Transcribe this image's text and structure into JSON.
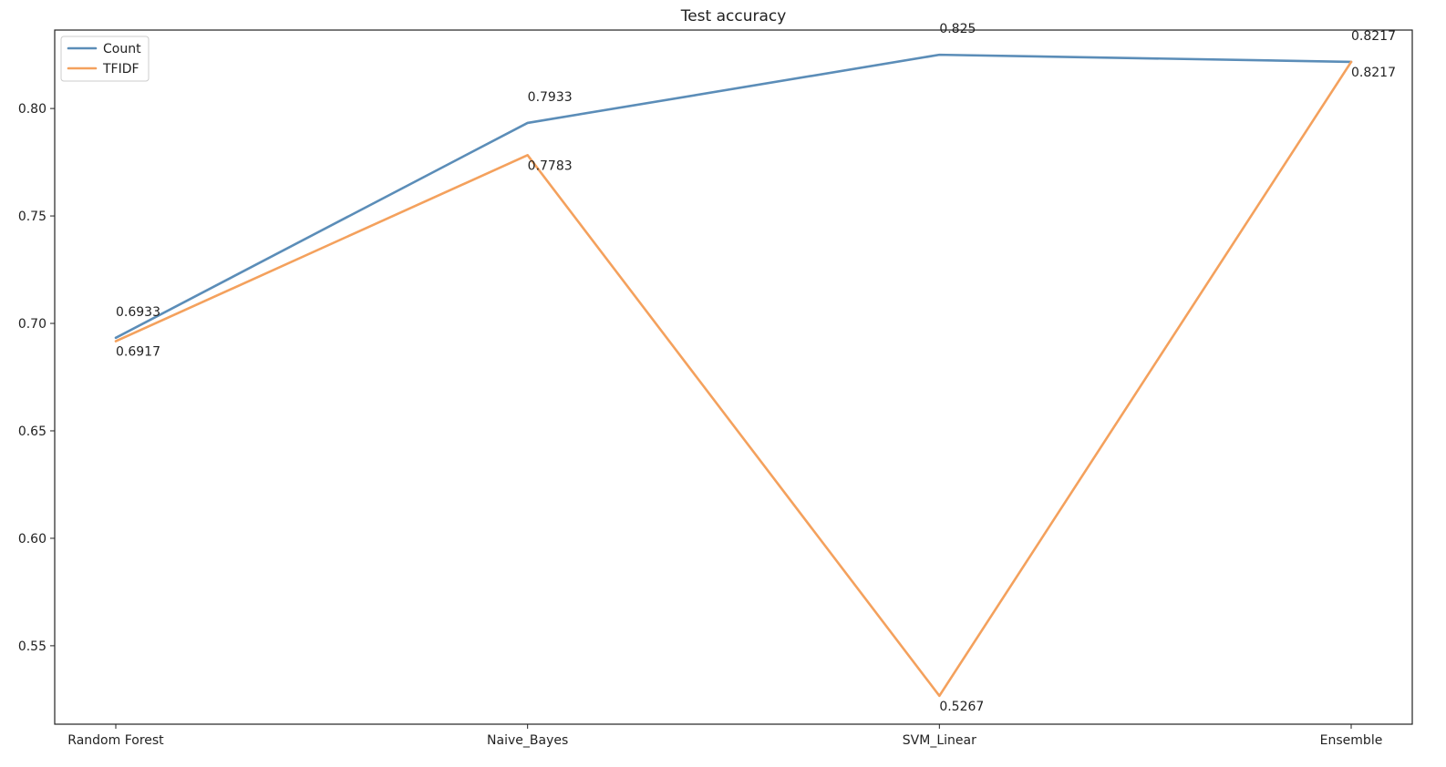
{
  "chart_data": {
    "type": "line",
    "title": "Test accuracy",
    "xlabel": "",
    "ylabel": "",
    "categories": [
      "Random Forest",
      "Naive_Bayes",
      "SVM_Linear",
      "Ensemble"
    ],
    "series": [
      {
        "name": "Count",
        "color": "#5b8db8",
        "values": [
          0.6933,
          0.7933,
          0.825,
          0.8217
        ],
        "labels": [
          "0.6933",
          "0.7933",
          "0.825",
          "0.8217"
        ]
      },
      {
        "name": "TFIDF",
        "color": "#f4a15d",
        "values": [
          0.6917,
          0.7783,
          0.5267,
          0.8217
        ],
        "labels": [
          "0.6917",
          "0.7783",
          "0.5267",
          "0.8217"
        ]
      }
    ],
    "ylim": [
      0.5135,
      0.8365
    ],
    "yticks": [
      0.55,
      0.6,
      0.65,
      0.7,
      0.75,
      0.8
    ],
    "ytick_labels": [
      "0.55",
      "0.60",
      "0.65",
      "0.70",
      "0.75",
      "0.80"
    ],
    "grid": false,
    "legend": "top-left"
  }
}
